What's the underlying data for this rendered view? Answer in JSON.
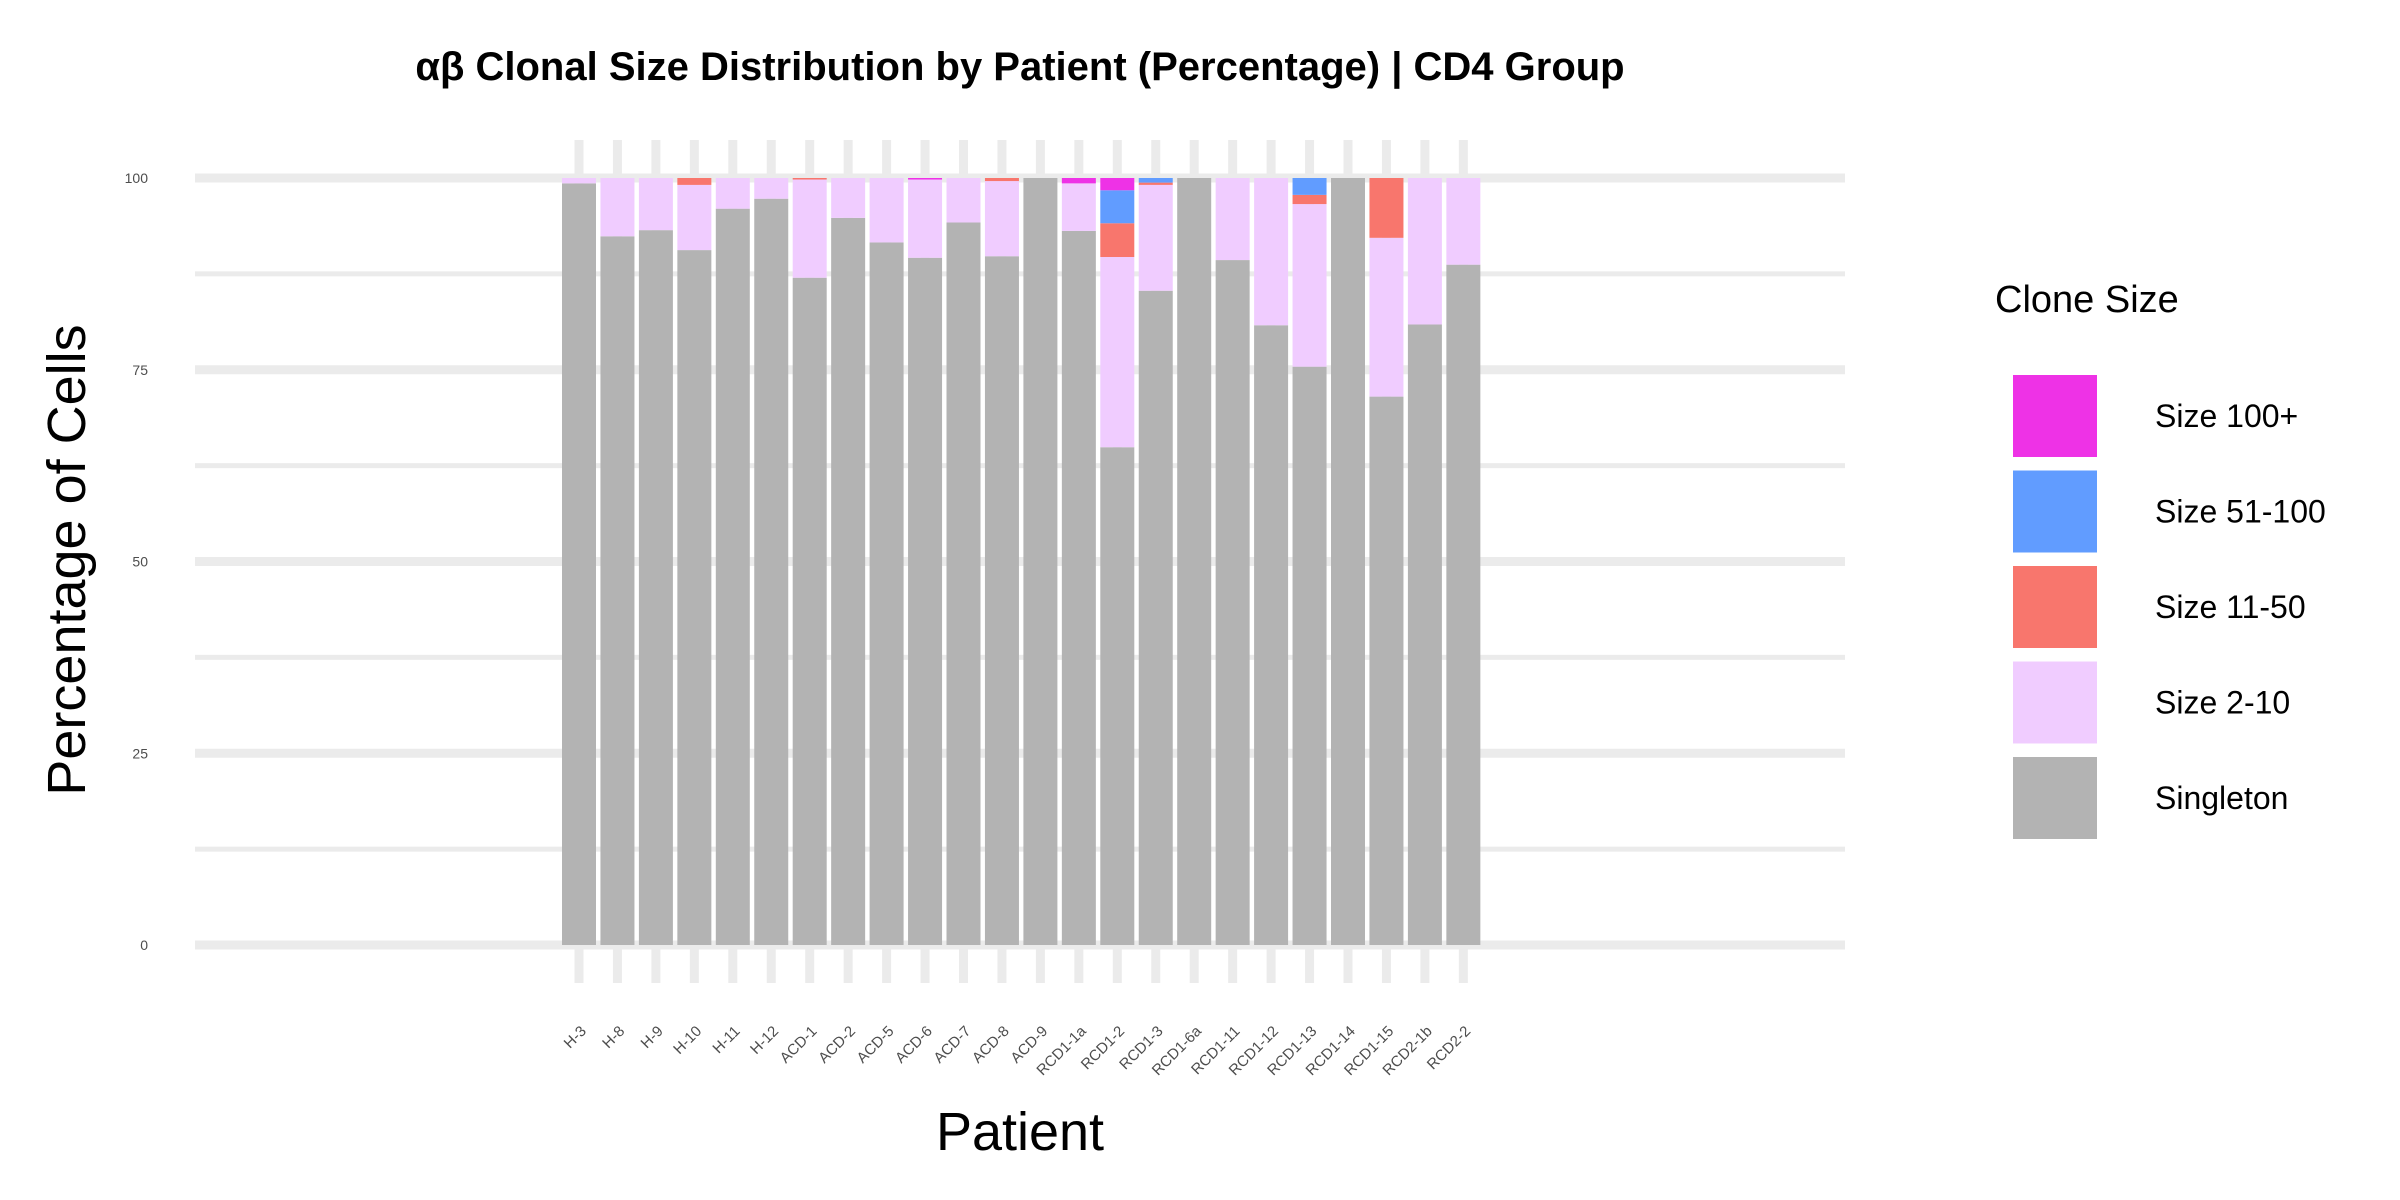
{
  "chart_data": {
    "type": "bar",
    "stacked": true,
    "title": "αβ Clonal Size Distribution by Patient (Percentage) | CD4 Group",
    "xlabel": "Patient",
    "ylabel": "Percentage of Cells",
    "ylim": [
      0,
      100
    ],
    "yticks": [
      0,
      25,
      50,
      75,
      100
    ],
    "grid": true,
    "legend_position": "right",
    "legend_title": "Clone Size",
    "categories": [
      "H-3",
      "H-8",
      "H-9",
      "H-10",
      "H-11",
      "H-12",
      "ACD-1",
      "ACD-2",
      "ACD-5",
      "ACD-6",
      "ACD-7",
      "ACD-8",
      "ACD-9",
      "RCD1-1a",
      "RCD1-2",
      "RCD1-3",
      "RCD1-6a",
      "RCD1-11",
      "RCD1-12",
      "RCD1-13",
      "RCD1-14",
      "RCD1-15",
      "RCD2-1b",
      "RCD2-2"
    ],
    "series": [
      {
        "name": "Singleton",
        "color": "#b3b3b3",
        "values": [
          99.3,
          92.4,
          93.2,
          90.6,
          96.0,
          97.3,
          87.0,
          94.8,
          91.6,
          89.6,
          94.2,
          89.8,
          100,
          93.1,
          64.9,
          85.3,
          100,
          89.3,
          80.8,
          75.4,
          100,
          71.5,
          80.9,
          88.7
        ]
      },
      {
        "name": "Size 2-10",
        "color": "#f0ccff",
        "values": [
          0.7,
          7.6,
          6.8,
          8.5,
          4.0,
          2.7,
          12.8,
          5.2,
          8.4,
          10.2,
          5.8,
          9.8,
          0,
          6.2,
          24.8,
          13.8,
          0,
          10.7,
          19.2,
          21.2,
          0,
          20.7,
          19.1,
          11.3
        ]
      },
      {
        "name": "Size 11-50",
        "color": "#f8766d",
        "values": [
          0,
          0,
          0,
          0.9,
          0,
          0,
          0.2,
          0,
          0,
          0,
          0,
          0.4,
          0,
          0,
          4.4,
          0.3,
          0,
          0,
          0,
          1.2,
          0,
          7.8,
          0,
          0
        ]
      },
      {
        "name": "Size 51-100",
        "color": "#619cff",
        "values": [
          0,
          0,
          0,
          0,
          0,
          0,
          0,
          0,
          0,
          0,
          0,
          0,
          0,
          0,
          4.3,
          0.6,
          0,
          0,
          0,
          2.2,
          0,
          0,
          0,
          0
        ]
      },
      {
        "name": "Size 100+",
        "color": "#ee32e6",
        "values": [
          0,
          0,
          0,
          0,
          0,
          0,
          0,
          0,
          0,
          0.2,
          0,
          0,
          0,
          0.7,
          1.6,
          0,
          0,
          0,
          0,
          0,
          0,
          0,
          0,
          0
        ]
      }
    ],
    "legend_order": [
      "Size 100+",
      "Size 51-100",
      "Size 11-50",
      "Size 2-10",
      "Singleton"
    ]
  }
}
